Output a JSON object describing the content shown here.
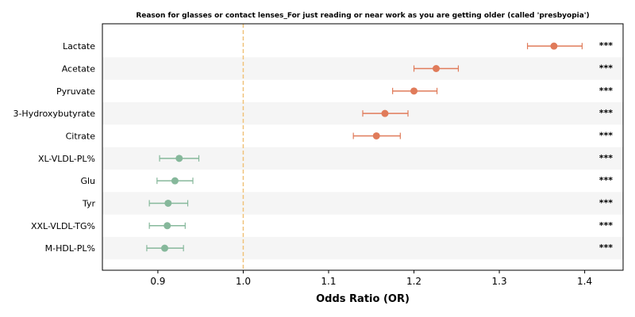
{
  "chart_data": {
    "type": "forest",
    "title": "Reason for glasses or contact lenses_For just reading or near work as you are getting older (called 'presbyopia')",
    "xlabel": "Odds Ratio (OR)",
    "xlim": [
      0.835,
      1.445
    ],
    "xticks": [
      0.9,
      1.0,
      1.1,
      1.2,
      1.3,
      1.4
    ],
    "xtick_labels": [
      "0.9",
      "1.0",
      "1.1",
      "1.2",
      "1.3",
      "1.4"
    ],
    "reference_line": 1.0,
    "colors": {
      "positive": "#e07b5a",
      "negative": "#86b89b",
      "reference": "#f0c27a",
      "band": "#f5f5f5"
    },
    "rows": [
      {
        "label": "Lactate",
        "or": 1.364,
        "ci": [
          1.333,
          1.397
        ],
        "sig": "***"
      },
      {
        "label": "Acetate",
        "or": 1.226,
        "ci": [
          1.2,
          1.252
        ],
        "sig": "***"
      },
      {
        "label": "Pyruvate",
        "or": 1.2,
        "ci": [
          1.175,
          1.227
        ],
        "sig": "***"
      },
      {
        "label": "3-Hydroxybutyrate",
        "or": 1.166,
        "ci": [
          1.14,
          1.193
        ],
        "sig": "***"
      },
      {
        "label": "Citrate",
        "or": 1.156,
        "ci": [
          1.129,
          1.184
        ],
        "sig": "***"
      },
      {
        "label": "XL-VLDL-PL%",
        "or": 0.925,
        "ci": [
          0.902,
          0.948
        ],
        "sig": "***"
      },
      {
        "label": "Glu",
        "or": 0.92,
        "ci": [
          0.899,
          0.941
        ],
        "sig": "***"
      },
      {
        "label": "Tyr",
        "or": 0.912,
        "ci": [
          0.89,
          0.935
        ],
        "sig": "***"
      },
      {
        "label": "XXL-VLDL-TG%",
        "or": 0.911,
        "ci": [
          0.89,
          0.932
        ],
        "sig": "***"
      },
      {
        "label": "M-HDL-PL%",
        "or": 0.908,
        "ci": [
          0.887,
          0.93
        ],
        "sig": "***"
      }
    ]
  }
}
